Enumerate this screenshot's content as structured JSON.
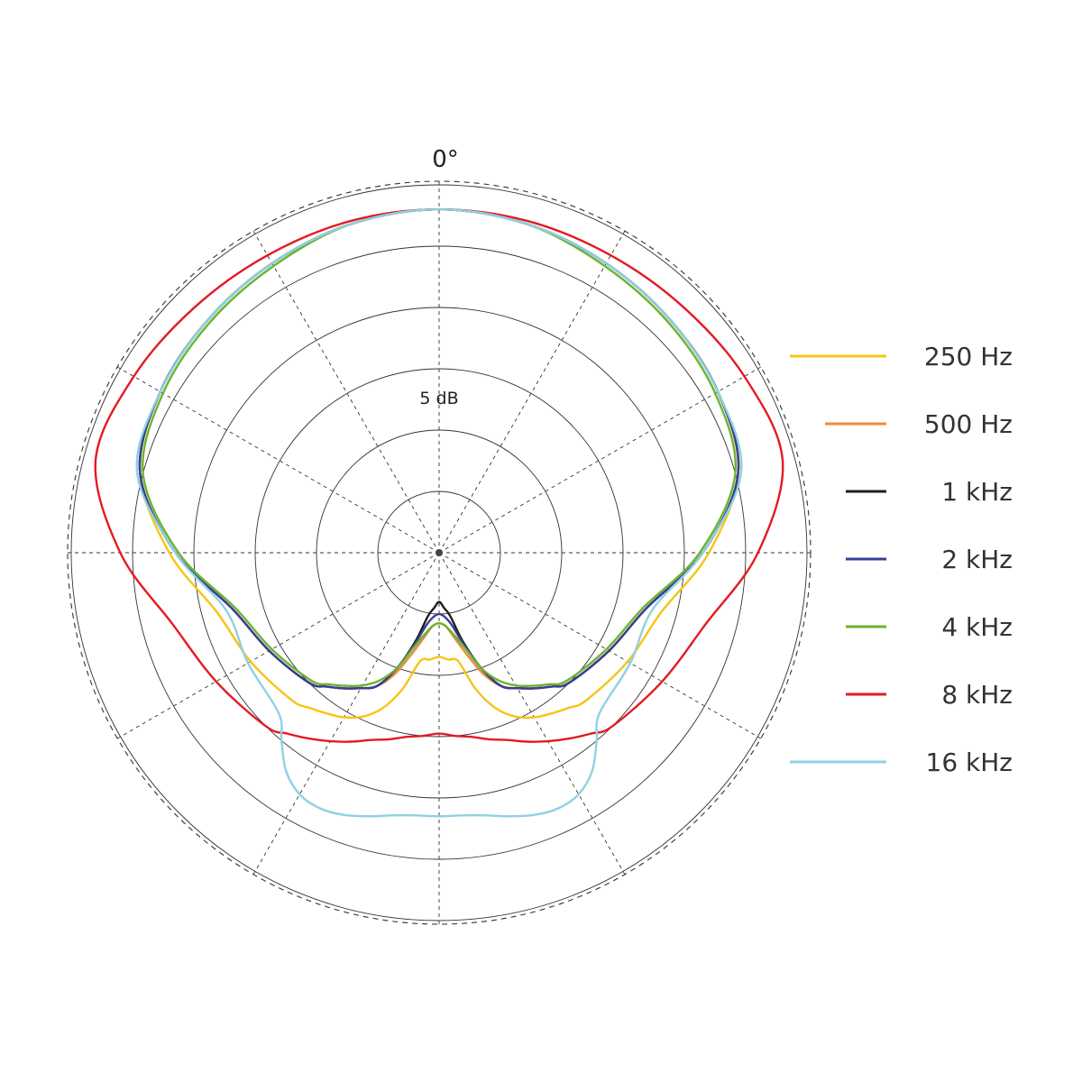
{
  "chart_data": {
    "type": "polar",
    "title": "",
    "angle_label": "0°",
    "ring_label": "5 dB",
    "rings": 7,
    "grid": true,
    "legend_position": "right",
    "angles_deg": [
      0,
      15,
      30,
      45,
      60,
      75,
      90,
      105,
      120,
      135,
      140,
      145,
      150,
      155,
      160,
      165,
      170,
      175,
      180
    ],
    "series": [
      {
        "name": "250 Hz",
        "color": "#f5c518",
        "values": [
          5.6,
          5.55,
          5.45,
          5.35,
          5.25,
          5.05,
          4.4,
          3.75,
          3.55,
          3.4,
          3.3,
          3.2,
          3.1,
          2.95,
          2.7,
          2.3,
          1.8,
          1.75,
          1.7
        ]
      },
      {
        "name": "500 Hz",
        "color": "#f08a3c",
        "values": [
          5.6,
          5.55,
          5.45,
          5.35,
          5.25,
          5.05,
          4.3,
          3.5,
          3.2,
          3.0,
          2.85,
          2.7,
          2.55,
          2.4,
          2.1,
          1.7,
          1.4,
          1.2,
          1.15
        ]
      },
      {
        "name": "1 kHz",
        "color": "#1e1e1e",
        "values": [
          5.6,
          5.55,
          5.45,
          5.35,
          5.25,
          5.05,
          4.3,
          3.5,
          3.2,
          3.0,
          2.85,
          2.7,
          2.55,
          2.4,
          2.0,
          1.5,
          1.05,
          0.9,
          0.8
        ]
      },
      {
        "name": "2 kHz",
        "color": "#3a3f96",
        "values": [
          5.6,
          5.55,
          5.45,
          5.35,
          5.25,
          5.05,
          4.3,
          3.5,
          3.2,
          3.0,
          2.85,
          2.7,
          2.55,
          2.4,
          2.0,
          1.55,
          1.2,
          1.05,
          1.0
        ]
      },
      {
        "name": "4 kHz",
        "color": "#6ab430",
        "values": [
          5.6,
          5.55,
          5.4,
          5.3,
          5.2,
          5.0,
          4.25,
          3.45,
          3.15,
          2.95,
          2.8,
          2.65,
          2.5,
          2.3,
          2.0,
          1.6,
          1.35,
          1.2,
          1.15
        ]
      },
      {
        "name": "8 kHz",
        "color": "#e31b23",
        "values": [
          5.6,
          5.6,
          5.6,
          5.65,
          5.75,
          5.8,
          5.2,
          4.5,
          4.2,
          4.0,
          3.85,
          3.7,
          3.55,
          3.4,
          3.25,
          3.15,
          3.05,
          3.0,
          2.95
        ]
      },
      {
        "name": "16 kHz",
        "color": "#8fd1e3",
        "values": [
          5.6,
          5.55,
          5.45,
          5.35,
          5.25,
          5.1,
          4.3,
          3.6,
          3.6,
          3.7,
          4.0,
          4.35,
          4.55,
          4.6,
          4.55,
          4.45,
          4.35,
          4.3,
          4.3
        ]
      }
    ]
  }
}
